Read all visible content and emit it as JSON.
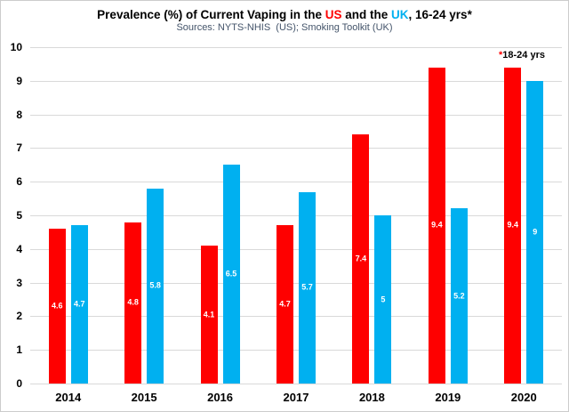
{
  "title": {
    "part1": "Prevalence (%) of Current Vaping in the ",
    "us": "US",
    "part2": " and the ",
    "uk": "UK",
    "part3": ", 16-24 yrs*"
  },
  "subtitle": "Sources: NYTS-NHIS  (US); Smoking Toolkit (UK)",
  "annotation": {
    "asterisk": "*",
    "text": "18-24 yrs"
  },
  "colors": {
    "us": "#fe0000",
    "uk": "#00b0f0",
    "grid": "#d9d9d9",
    "subtitle": "#44546a"
  },
  "chart_data": {
    "type": "bar",
    "title": "Prevalence (%) of Current Vaping in the US and the UK, 16-24 yrs*",
    "subtitle": "Sources: NYTS-NHIS  (US); Smoking Toolkit (UK)",
    "annotation": "*18-24 yrs",
    "categories": [
      "2014",
      "2015",
      "2016",
      "2017",
      "2018",
      "2019",
      "2020"
    ],
    "series": [
      {
        "name": "US",
        "color": "#fe0000",
        "values": [
          4.6,
          4.8,
          4.1,
          4.7,
          7.4,
          9.4,
          9.4
        ]
      },
      {
        "name": "UK",
        "color": "#00b0f0",
        "values": [
          4.7,
          5.8,
          6.5,
          5.7,
          5,
          5.2,
          9
        ]
      }
    ],
    "ylim": [
      0,
      10
    ],
    "yticks": [
      0,
      1,
      2,
      3,
      4,
      5,
      6,
      7,
      8,
      9,
      10
    ],
    "grid": true,
    "value_labels": "inside-center",
    "legend_position": "none"
  }
}
